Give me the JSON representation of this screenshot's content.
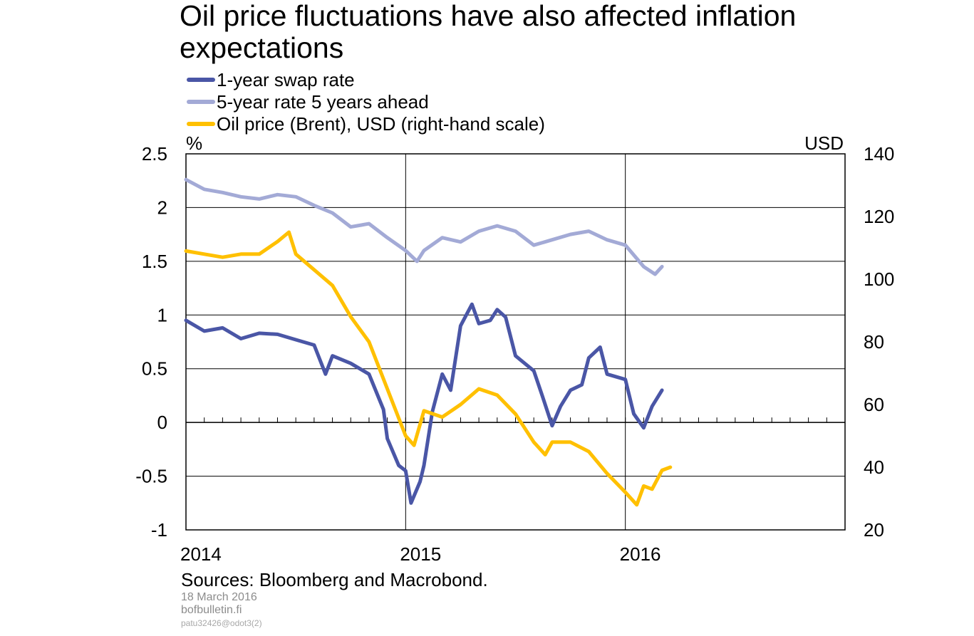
{
  "chart_data": {
    "type": "line",
    "title": "Oil price fluctuations have also affected inflation expectations",
    "left_unit": "%",
    "right_unit": "USD",
    "y_left": {
      "min": -1,
      "max": 2.5,
      "ticks": [
        "2.5",
        "2",
        "1.5",
        "1",
        "0.5",
        "0",
        "-0.5",
        "-1"
      ]
    },
    "y_right": {
      "min": 20,
      "max": 140,
      "ticks": [
        "140",
        "120",
        "100",
        "80",
        "60",
        "40",
        "20"
      ]
    },
    "x": {
      "start": "2014-01",
      "end": "2016-12",
      "ticks": [
        "2014",
        "2015",
        "2016"
      ]
    },
    "legend_position": "top-left",
    "series": [
      {
        "name": "1-year swap rate",
        "axis": "left",
        "color": "#4a56a6",
        "points": [
          [
            "2014-01",
            0.95
          ],
          [
            "2014-02",
            0.85
          ],
          [
            "2014-03",
            0.88
          ],
          [
            "2014-04",
            0.78
          ],
          [
            "2014-05",
            0.83
          ],
          [
            "2014-06",
            0.82
          ],
          [
            "2014-07",
            0.77
          ],
          [
            "2014-08",
            0.72
          ],
          [
            "2014-08-20",
            0.45
          ],
          [
            "2014-09",
            0.62
          ],
          [
            "2014-10",
            0.55
          ],
          [
            "2014-11",
            0.45
          ],
          [
            "2014-11-25",
            0.12
          ],
          [
            "2014-12",
            -0.15
          ],
          [
            "2014-12-20",
            -0.4
          ],
          [
            "2015-01",
            -0.45
          ],
          [
            "2015-01-10",
            -0.75
          ],
          [
            "2015-01-25",
            -0.55
          ],
          [
            "2015-02",
            -0.4
          ],
          [
            "2015-02-15",
            0.1
          ],
          [
            "2015-03",
            0.45
          ],
          [
            "2015-03-15",
            0.3
          ],
          [
            "2015-04",
            0.9
          ],
          [
            "2015-04-20",
            1.1
          ],
          [
            "2015-05",
            0.92
          ],
          [
            "2015-05-20",
            0.95
          ],
          [
            "2015-06",
            1.05
          ],
          [
            "2015-06-15",
            0.98
          ],
          [
            "2015-07",
            0.62
          ],
          [
            "2015-08",
            0.48
          ],
          [
            "2015-08-15",
            0.25
          ],
          [
            "2015-09",
            -0.03
          ],
          [
            "2015-09-15",
            0.15
          ],
          [
            "2015-10",
            0.3
          ],
          [
            "2015-10-20",
            0.35
          ],
          [
            "2015-11",
            0.6
          ],
          [
            "2015-11-20",
            0.7
          ],
          [
            "2015-12",
            0.45
          ],
          [
            "2016-01",
            0.4
          ],
          [
            "2016-01-15",
            0.08
          ],
          [
            "2016-02",
            -0.05
          ],
          [
            "2016-02-15",
            0.15
          ],
          [
            "2016-03",
            0.3
          ]
        ]
      },
      {
        "name": "5-year rate 5 years ahead",
        "axis": "left",
        "color": "#a3aad6",
        "points": [
          [
            "2014-01",
            2.26
          ],
          [
            "2014-02",
            2.17
          ],
          [
            "2014-03",
            2.14
          ],
          [
            "2014-04",
            2.1
          ],
          [
            "2014-05",
            2.08
          ],
          [
            "2014-06",
            2.12
          ],
          [
            "2014-07",
            2.1
          ],
          [
            "2014-08",
            2.02
          ],
          [
            "2014-09",
            1.95
          ],
          [
            "2014-10",
            1.82
          ],
          [
            "2014-11",
            1.85
          ],
          [
            "2014-12",
            1.72
          ],
          [
            "2015-01",
            1.6
          ],
          [
            "2015-01-20",
            1.5
          ],
          [
            "2015-02",
            1.6
          ],
          [
            "2015-03",
            1.72
          ],
          [
            "2015-04",
            1.68
          ],
          [
            "2015-05",
            1.78
          ],
          [
            "2015-06",
            1.83
          ],
          [
            "2015-07",
            1.78
          ],
          [
            "2015-08",
            1.65
          ],
          [
            "2015-09",
            1.7
          ],
          [
            "2015-10",
            1.75
          ],
          [
            "2015-11",
            1.78
          ],
          [
            "2015-12",
            1.7
          ],
          [
            "2016-01",
            1.65
          ],
          [
            "2016-02",
            1.45
          ],
          [
            "2016-02-20",
            1.38
          ],
          [
            "2016-03",
            1.45
          ]
        ]
      },
      {
        "name": "Oil price (Brent), USD (right-hand scale)",
        "axis": "right",
        "color": "#ffc000",
        "points": [
          [
            "2014-01",
            109
          ],
          [
            "2014-02",
            108
          ],
          [
            "2014-03",
            107
          ],
          [
            "2014-04",
            108
          ],
          [
            "2014-05",
            108
          ],
          [
            "2014-06",
            112
          ],
          [
            "2014-06-20",
            115
          ],
          [
            "2014-07",
            108
          ],
          [
            "2014-08",
            103
          ],
          [
            "2014-09",
            98
          ],
          [
            "2014-10",
            88
          ],
          [
            "2014-11",
            80
          ],
          [
            "2014-12",
            65
          ],
          [
            "2015-01",
            50
          ],
          [
            "2015-01-15",
            47
          ],
          [
            "2015-02",
            58
          ],
          [
            "2015-03",
            56
          ],
          [
            "2015-04",
            60
          ],
          [
            "2015-05",
            65
          ],
          [
            "2015-06",
            63
          ],
          [
            "2015-07",
            57
          ],
          [
            "2015-08",
            48
          ],
          [
            "2015-08-20",
            44
          ],
          [
            "2015-09",
            48
          ],
          [
            "2015-10",
            48
          ],
          [
            "2015-11",
            45
          ],
          [
            "2015-12",
            38
          ],
          [
            "2016-01",
            32
          ],
          [
            "2016-01-20",
            28
          ],
          [
            "2016-02",
            34
          ],
          [
            "2016-02-15",
            33
          ],
          [
            "2016-03",
            39
          ],
          [
            "2016-03-15",
            40
          ]
        ]
      }
    ]
  },
  "footer": {
    "sources": "Sources: Bloomberg and Macrobond.",
    "date": "18 March 2016",
    "site": "bofbulletin.fi",
    "code": "patu32426@odot3(2)"
  }
}
